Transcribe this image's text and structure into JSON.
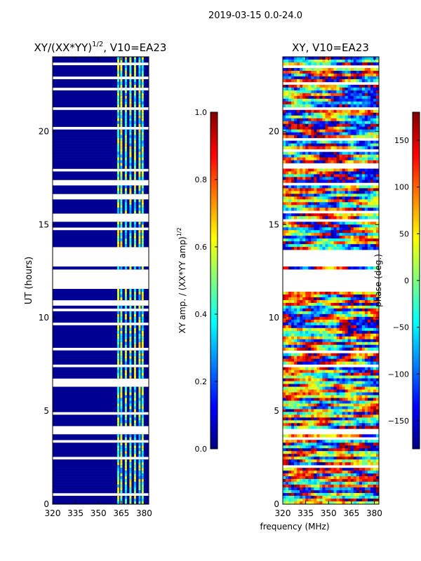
{
  "figure_title": "2019-03-15 0.0-24.0",
  "xlabel": "frequency (MHz)",
  "colorscale": [
    "#00007f",
    "#0000ff",
    "#007fff",
    "#00ffff",
    "#7fff7f",
    "#ffff00",
    "#ff7f00",
    "#ff0000",
    "#7f0000"
  ],
  "chart_data": [
    {
      "type": "heatmap",
      "title_main": "XY/(XX*YY)",
      "title_sup": "1/2",
      "title_rest": ", V10=EA23",
      "ylabel": "UT (hours)",
      "xlim": [
        320,
        383
      ],
      "ylim": [
        0,
        24
      ],
      "x_ticks": [
        320,
        335,
        350,
        365,
        380
      ],
      "y_ticks": [
        0,
        5,
        10,
        15,
        20
      ],
      "colorbar": {
        "label_main": "XY amp. / (XX*YY amp)",
        "label_sup": "1/2",
        "range": [
          0,
          1
        ],
        "ticks": [
          "0.0",
          "0.2",
          "0.4",
          "0.6",
          "0.8",
          "1.0"
        ]
      },
      "bright_channels_mhz": [
        363,
        365,
        368,
        371,
        374,
        377,
        379
      ],
      "typical_value_outside_band": 0.02,
      "typical_value_in_band": 0.45,
      "data_gaps_hours": [
        [
          11.6,
          12.6
        ],
        [
          12.7,
          13.7
        ]
      ]
    },
    {
      "type": "heatmap",
      "title_main": "XY, V10=EA23",
      "ylabel": "",
      "xlim": [
        320,
        383
      ],
      "ylim": [
        0,
        24
      ],
      "x_ticks": [
        320,
        335,
        350,
        365,
        380
      ],
      "y_ticks": [
        0,
        5,
        10,
        15,
        20
      ],
      "colorbar": {
        "label_main": "phase (deg.)",
        "range": [
          -180,
          180
        ],
        "ticks": [
          "150",
          "100",
          "50",
          "0",
          "−50",
          "−100",
          "−150"
        ]
      },
      "data_gaps_hours": [
        [
          11.6,
          12.6
        ],
        [
          12.7,
          13.7
        ]
      ]
    }
  ]
}
